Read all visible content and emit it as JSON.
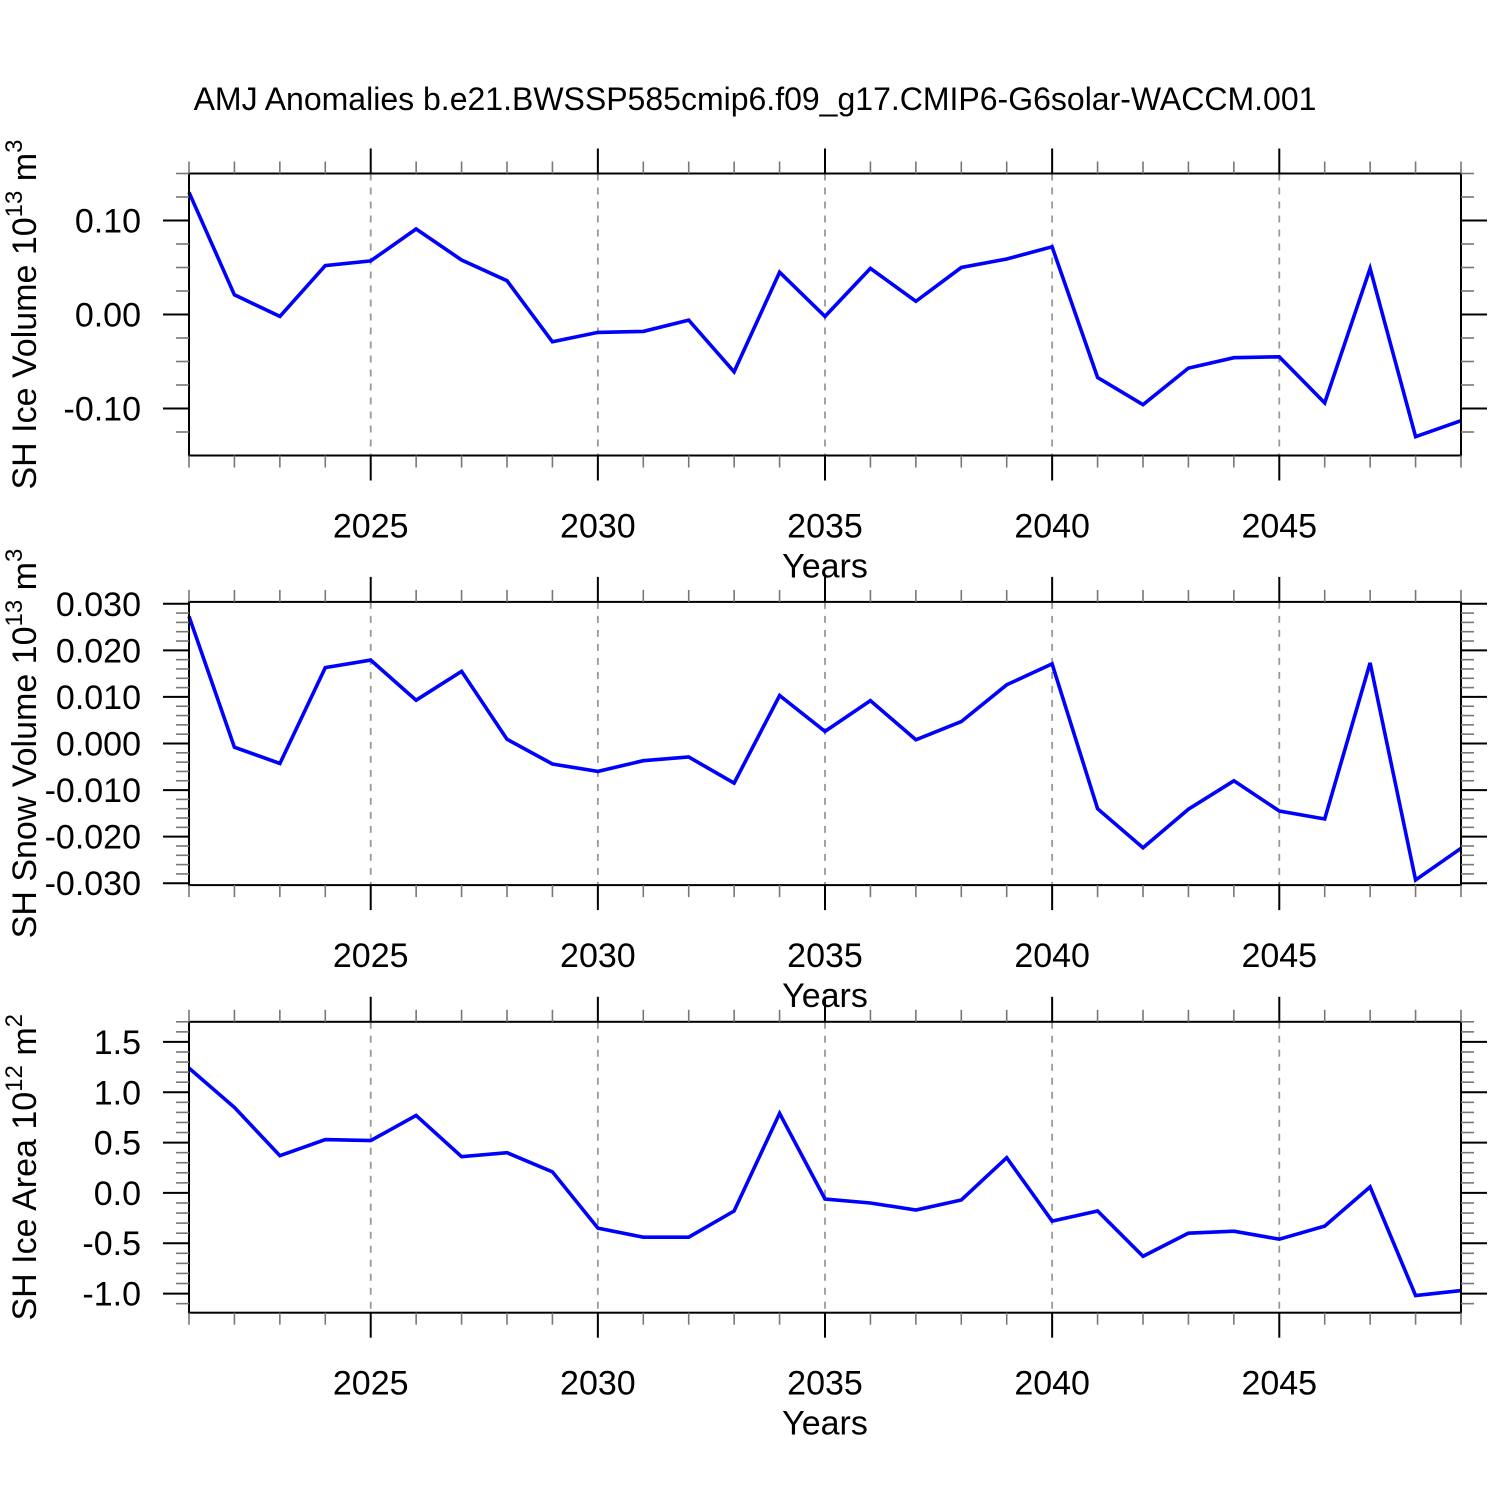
{
  "title": "AMJ Anomalies b.e21.BWSSP585cmip6.f09_g17.CMIP6-G6solar-WACCM.001",
  "colors": {
    "line": "#0000ff",
    "grid": "#999999",
    "frame": "#000000",
    "major_tick": "#000000",
    "minor_tick": "#777777",
    "text": "#000000",
    "background": "#ffffff"
  },
  "years": [
    2021,
    2022,
    2023,
    2024,
    2025,
    2026,
    2027,
    2028,
    2029,
    2030,
    2031,
    2032,
    2033,
    2034,
    2035,
    2036,
    2037,
    2038,
    2039,
    2040,
    2041,
    2042,
    2043,
    2044,
    2045,
    2046,
    2047,
    2048,
    2049
  ],
  "x_axis": {
    "label": "Years",
    "range": [
      2021,
      2049
    ],
    "major_ticks": [
      2025,
      2030,
      2035,
      2040,
      2045
    ],
    "major_tick_labels": [
      "2025",
      "2030",
      "2035",
      "2040",
      "2045"
    ],
    "minor_step": 1,
    "grid_years": [
      2025,
      2030,
      2035,
      2040,
      2045
    ]
  },
  "chart_data": [
    {
      "type": "line",
      "title": "",
      "ylabel": "SH Ice Volume 10^13 m^3",
      "ylabel_segments": [
        {
          "text": "SH Ice Volume 10"
        },
        {
          "text": "13",
          "sup": true
        },
        {
          "text": " m"
        },
        {
          "text": "3",
          "sup": true
        }
      ],
      "xlabel": "Years",
      "ylim": [
        -0.15,
        0.15
      ],
      "yticks": [
        {
          "value": 0.1,
          "label": "0.10"
        },
        {
          "value": 0.0,
          "label": "0.00"
        },
        {
          "value": -0.1,
          "label": "-0.10"
        }
      ],
      "y_minor_step": 0.025,
      "values": [
        0.13,
        0.021,
        -0.002,
        0.052,
        0.057,
        0.091,
        0.058,
        0.036,
        -0.029,
        -0.019,
        -0.018,
        -0.006,
        -0.061,
        0.045,
        -0.002,
        0.049,
        0.014,
        0.05,
        0.059,
        0.072,
        -0.067,
        -0.096,
        -0.057,
        -0.046,
        -0.045,
        -0.094,
        0.049,
        -0.13,
        -0.113
      ]
    },
    {
      "type": "line",
      "title": "",
      "ylabel": "SH Snow Volume 10^13 m^3",
      "ylabel_segments": [
        {
          "text": "SH Snow Volume 10"
        },
        {
          "text": "13",
          "sup": true
        },
        {
          "text": " m"
        },
        {
          "text": "3",
          "sup": true
        }
      ],
      "xlabel": "Years",
      "ylim": [
        -0.0304,
        0.0304
      ],
      "yticks": [
        {
          "value": 0.03,
          "label": "0.030"
        },
        {
          "value": 0.02,
          "label": "0.020"
        },
        {
          "value": 0.01,
          "label": "0.010"
        },
        {
          "value": 0.0,
          "label": "0.000"
        },
        {
          "value": -0.01,
          "label": "-0.010"
        },
        {
          "value": -0.02,
          "label": "-0.020"
        },
        {
          "value": -0.03,
          "label": "-0.030"
        }
      ],
      "y_minor_step": 0.002,
      "values": [
        0.0273,
        -0.0008,
        -0.0043,
        0.0163,
        0.0179,
        0.0093,
        0.0155,
        0.0009,
        -0.0044,
        -0.006,
        -0.0037,
        -0.0029,
        -0.0085,
        0.0103,
        0.0026,
        0.0092,
        0.0008,
        0.0047,
        0.0126,
        0.0171,
        -0.014,
        -0.0224,
        -0.0141,
        -0.008,
        -0.0145,
        -0.0162,
        0.0173,
        -0.0293,
        -0.0225
      ]
    },
    {
      "type": "line",
      "title": "",
      "ylabel": "SH Ice Area 10^12 m^2",
      "ylabel_segments": [
        {
          "text": "SH Ice Area 10"
        },
        {
          "text": "12",
          "sup": true
        },
        {
          "text": " m"
        },
        {
          "text": "2",
          "sup": true
        }
      ],
      "xlabel": "Years",
      "ylim": [
        -1.19,
        1.7
      ],
      "yticks": [
        {
          "value": 1.5,
          "label": "1.5"
        },
        {
          "value": 1.0,
          "label": "1.0"
        },
        {
          "value": 0.5,
          "label": "0.5"
        },
        {
          "value": 0.0,
          "label": "0.0"
        },
        {
          "value": -0.5,
          "label": "-0.5"
        },
        {
          "value": -1.0,
          "label": "-1.0"
        }
      ],
      "y_minor_step": 0.1,
      "values": [
        1.24,
        0.85,
        0.37,
        0.53,
        0.52,
        0.77,
        0.36,
        0.4,
        0.21,
        -0.35,
        -0.44,
        -0.44,
        -0.18,
        0.79,
        -0.06,
        -0.1,
        -0.17,
        -0.07,
        0.35,
        -0.28,
        -0.18,
        -0.63,
        -0.4,
        -0.38,
        -0.46,
        -0.33,
        0.06,
        -1.02,
        -0.97
      ]
    }
  ]
}
